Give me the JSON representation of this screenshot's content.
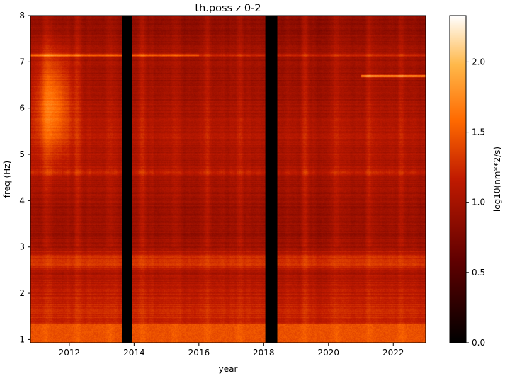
{
  "chart_data": {
    "type": "heatmap",
    "title": "th.poss z 0-2",
    "xlabel": "year",
    "ylabel": "freq (Hz)",
    "colorbar_label": "log10(nm**2/s)",
    "colormap": "gist_heat",
    "x_range": [
      2010.8,
      2023.0
    ],
    "y_range": [
      0.93,
      8.0
    ],
    "x_ticks": [
      2012,
      2014,
      2016,
      2018,
      2020,
      2022
    ],
    "y_ticks": [
      1,
      2,
      3,
      4,
      5,
      6,
      7,
      8
    ],
    "c_range": [
      0.0,
      2.33
    ],
    "c_ticks": [
      0.0,
      0.5,
      1.0,
      1.5,
      2.0
    ],
    "data_gaps": [
      {
        "start": 2013.62,
        "end": 2013.93
      },
      {
        "start": 2018.05,
        "end": 2018.42
      }
    ],
    "features": {
      "background_level": 0.95,
      "high_freq_ridge_near_4_6hz_level": 1.3,
      "band_2_5_to_2_9hz_level": 1.3,
      "low_freq_below_1_3hz_level": 1.45,
      "line_7_15hz_level": 1.55,
      "line_6_7hz_after_2021_level": 2.0,
      "high_freq_hotspot_2011_2012_level": 1.55
    }
  }
}
